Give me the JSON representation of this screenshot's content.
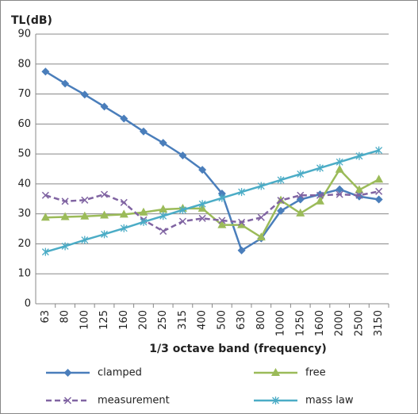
{
  "chart_data": {
    "type": "line",
    "y_label": "TL(dB)",
    "x_label": "1/3 octave band (frequency)",
    "categories": [
      "63",
      "80",
      "100",
      "125",
      "160",
      "200",
      "250",
      "315",
      "400",
      "500",
      "630",
      "800",
      "1000",
      "1250",
      "1600",
      "2000",
      "2500",
      "3150"
    ],
    "series": [
      {
        "name": "clamped",
        "color": "#4a7ebb",
        "marker": "diamond",
        "style": "solid",
        "values": [
          77.5,
          73.5,
          69.8,
          65.8,
          61.8,
          57.5,
          53.7,
          49.5,
          44.7,
          36.8,
          17.8,
          21.8,
          31.0,
          34.8,
          36.5,
          38.2,
          35.8,
          34.8
        ]
      },
      {
        "name": "free",
        "color": "#9bbb59",
        "marker": "triangle",
        "style": "solid",
        "values": [
          28.8,
          29.0,
          29.2,
          29.5,
          29.8,
          30.5,
          31.5,
          31.8,
          31.8,
          26.3,
          26.3,
          22.2,
          34.5,
          30.2,
          34.2,
          44.8,
          38.0,
          41.5
        ]
      },
      {
        "name": "measurement",
        "color": "#8064a2",
        "marker": "x",
        "style": "dashed",
        "values": [
          36.2,
          34.2,
          34.6,
          36.5,
          33.8,
          28.0,
          24.2,
          27.5,
          28.5,
          27.8,
          27.2,
          28.8,
          34.5,
          36.2,
          36.2,
          36.5,
          36.2,
          37.5
        ]
      },
      {
        "name": "mass law",
        "color": "#4bacc6",
        "marker": "asterisk",
        "style": "solid",
        "values": [
          17.3,
          19.2,
          21.3,
          23.2,
          25.2,
          27.3,
          29.3,
          31.3,
          33.3,
          35.3,
          37.3,
          39.3,
          41.3,
          43.3,
          45.3,
          47.3,
          49.3,
          51.2
        ]
      }
    ],
    "ylim": [
      0,
      90
    ],
    "yticks": [
      0,
      10,
      20,
      30,
      40,
      50,
      60,
      70,
      80,
      90
    ],
    "grid": true,
    "legend": "bottom"
  }
}
